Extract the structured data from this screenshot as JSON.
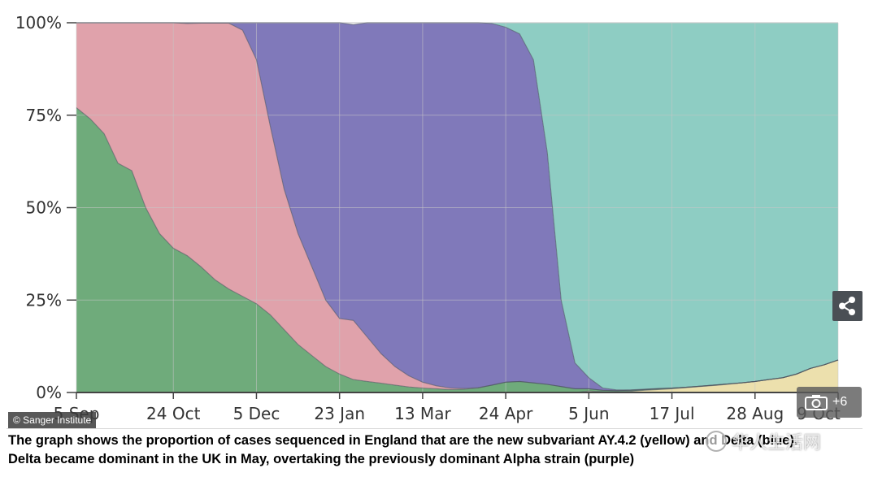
{
  "chart_data": {
    "type": "area",
    "stacked": true,
    "y_tick_labels": [
      "0%",
      "25%",
      "50%",
      "75%",
      "100%"
    ],
    "y_ticks": [
      0,
      25,
      50,
      75,
      100
    ],
    "ylim": [
      0,
      100
    ],
    "x_tick_labels": [
      "5 Sep",
      "24 Oct",
      "5 Dec",
      "23 Jan",
      "13 Mar",
      "24 Apr",
      "5 Jun",
      "17 Jul",
      "28 Aug",
      "9 Oct"
    ],
    "x_tick_positions": [
      0,
      7,
      13,
      19,
      25,
      31,
      37,
      43,
      49,
      55
    ],
    "xlim": [
      0,
      55
    ],
    "grid": true,
    "x_weeks": [
      0,
      1,
      2,
      3,
      4,
      5,
      6,
      7,
      8,
      9,
      10,
      11,
      12,
      13,
      14,
      15,
      16,
      17,
      18,
      19,
      20,
      21,
      22,
      23,
      24,
      25,
      26,
      27,
      28,
      29,
      30,
      31,
      32,
      33,
      34,
      35,
      36,
      37,
      38,
      39,
      40,
      41,
      42,
      43,
      44,
      45,
      46,
      47,
      48,
      49,
      50,
      51,
      52,
      53,
      54,
      55
    ],
    "series": [
      {
        "color": "#8ecdc3",
        "values": [
          0,
          0,
          0,
          0,
          0,
          0,
          0,
          0,
          0,
          0,
          0,
          0,
          0,
          0,
          0,
          0,
          0,
          0,
          0,
          0,
          0,
          0,
          0,
          0,
          0,
          0,
          0,
          0,
          0,
          0,
          0.2,
          1.2,
          3,
          10,
          35,
          75,
          92,
          96,
          98.8,
          99.3,
          99.3,
          99.1,
          98.9,
          98.8,
          98.6,
          98.3,
          98,
          97.7,
          97.4,
          97,
          96.5,
          96,
          95,
          93.5,
          92.5,
          91.2
        ]
      },
      {
        "color": "#6fab7b",
        "values": [
          77,
          74,
          70,
          62,
          60,
          50,
          43,
          39,
          37,
          34,
          30.5,
          28,
          26,
          24,
          21,
          17,
          13,
          10,
          7,
          5,
          3.5,
          3,
          2.5,
          2,
          1.5,
          1.2,
          1,
          0.8,
          0.9,
          1.2,
          2,
          2.8,
          3,
          2.6,
          2.2,
          1.6,
          1,
          0.6,
          0.4,
          0.3,
          0.3,
          0.2,
          0.2,
          0.2,
          0.1,
          0.1,
          0.1,
          0.1,
          0,
          0,
          0,
          0,
          0,
          0,
          0,
          0
        ]
      },
      {
        "color": "#e0a2ab",
        "values": [
          23,
          26,
          30,
          38,
          40,
          50,
          57,
          61,
          62.8,
          65.9,
          69.4,
          71.9,
          72,
          66,
          51,
          38,
          30,
          24,
          18,
          15,
          16,
          12,
          8,
          5,
          3,
          1.6,
          0.8,
          0.4,
          0.2,
          0.1,
          0,
          0,
          0,
          0,
          0,
          0,
          0,
          0,
          0,
          0,
          0,
          0,
          0,
          0,
          0,
          0,
          0,
          0,
          0,
          0,
          0,
          0,
          0,
          0,
          0,
          0
        ]
      },
      {
        "color": "#8079ba",
        "values": [
          0,
          0,
          0,
          0,
          0,
          0,
          0,
          0,
          0.2,
          0.1,
          0.1,
          0.1,
          2,
          10,
          28,
          45,
          57,
          66,
          75,
          80,
          80,
          85,
          89.5,
          93,
          95.5,
          97.2,
          98.2,
          98.8,
          98.9,
          98.7,
          97.8,
          96,
          94,
          87.4,
          62.8,
          23.4,
          7,
          3,
          0.6,
          0.2,
          0.1,
          0.1,
          0.1,
          0,
          0,
          0,
          0,
          0,
          0,
          0,
          0,
          0,
          0,
          0,
          0,
          0
        ]
      },
      {
        "color": "#ece0ad",
        "values": [
          0,
          0,
          0,
          0,
          0,
          0,
          0,
          0,
          0,
          0,
          0,
          0,
          0,
          0,
          0,
          0,
          0,
          0,
          0,
          0,
          0,
          0,
          0,
          0,
          0,
          0,
          0,
          0,
          0,
          0,
          0,
          0,
          0,
          0,
          0,
          0,
          0,
          0.4,
          0.2,
          0.2,
          0.3,
          0.6,
          0.8,
          1,
          1.3,
          1.6,
          1.9,
          2.2,
          2.6,
          3,
          3.5,
          4,
          5,
          6.5,
          7.5,
          8.8
        ]
      }
    ],
    "credit": "© Sanger Institute"
  },
  "caption": {
    "line1": "The graph shows the proportion of cases sequenced in England that are the new subvariant AY.4.2 (yellow) and Delta (blue).",
    "line2": "Delta became dominant in the UK in May, overtaking the previously dominant Alpha strain (purple)"
  },
  "gallery": {
    "count_label": "+6",
    "icon": "camera-icon"
  },
  "share": {
    "icon": "share-icon"
  },
  "watermark": {
    "text": "华人生活网"
  },
  "colors": {
    "gridline": "#c7c7c7",
    "axis": "#444444",
    "background": "#ffffff"
  }
}
